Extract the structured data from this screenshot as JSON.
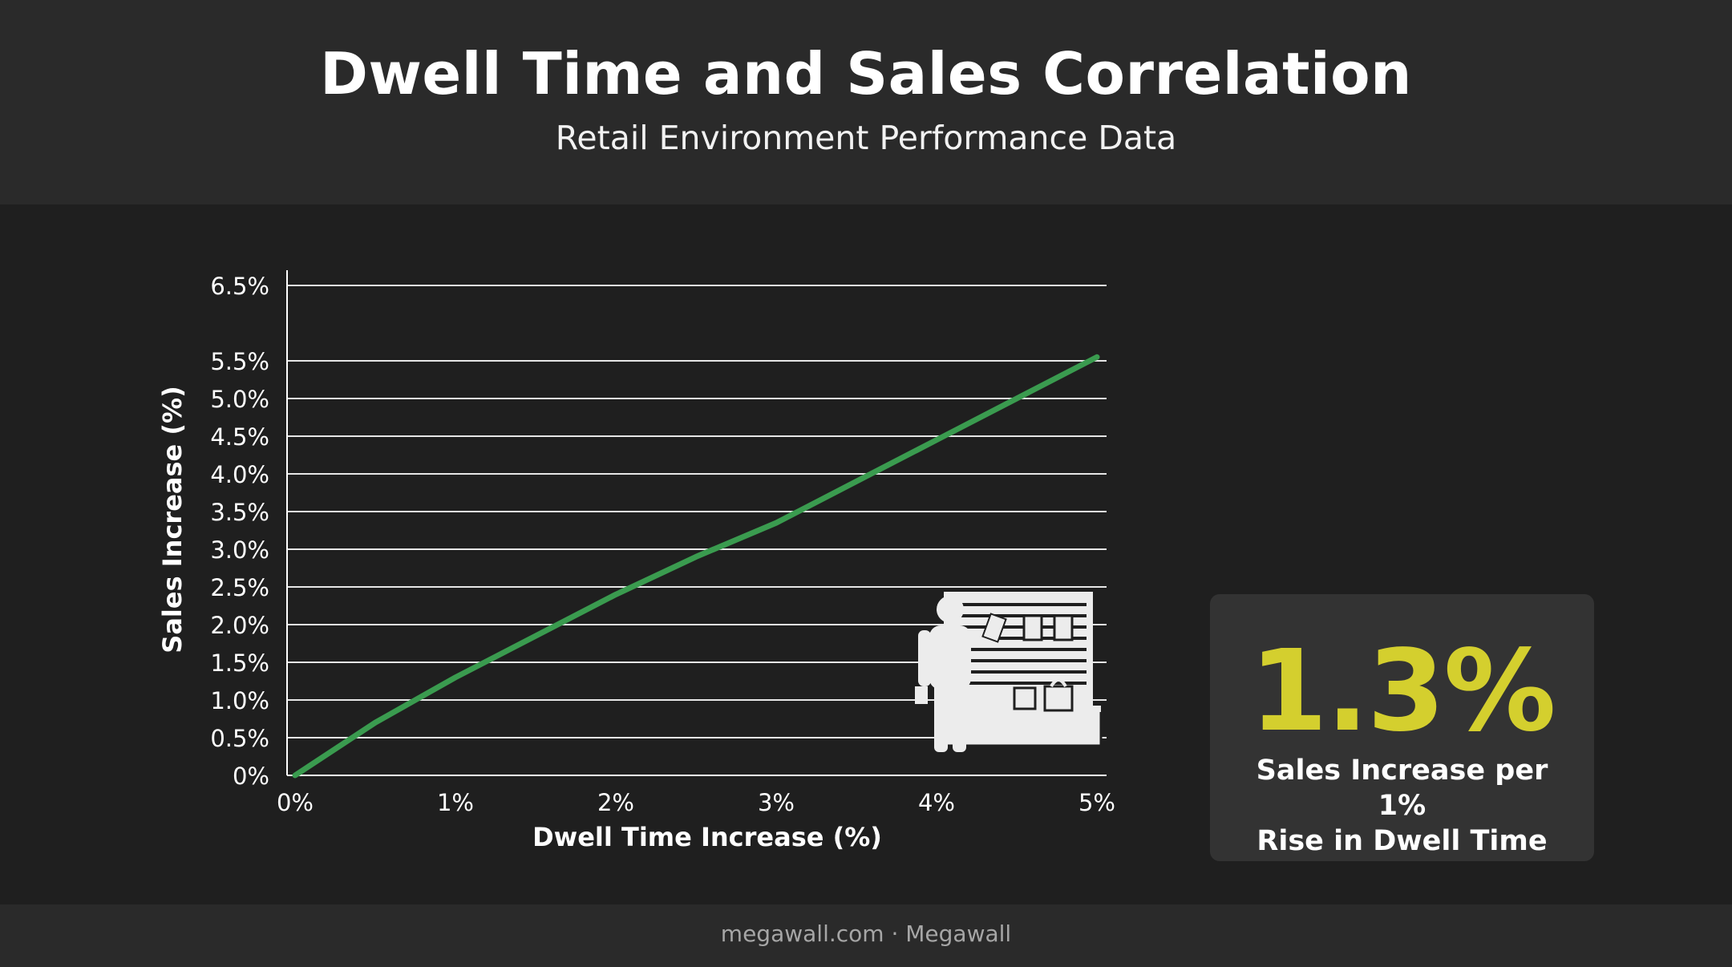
{
  "header": {
    "title": "Dwell Time and Sales Correlation",
    "subtitle": "Retail Environment Performance Data"
  },
  "stat_card": {
    "value": "1.3%",
    "label_line1": "Sales Increase per 1%",
    "label_line2": "Rise in Dwell Time",
    "value_color": "#d4cf2e"
  },
  "footer": {
    "text": "megawall.com · Megawall"
  },
  "illustration": {
    "icon": "shopper-at-shelf-icon"
  },
  "colors": {
    "line": "#3a9b4f",
    "background": "#1f1f1f",
    "panel": "#2a2a2a",
    "card": "#333333"
  },
  "chart_data": {
    "type": "line",
    "title": "",
    "xlabel": "Dwell Time Increase (%)",
    "ylabel": "Sales Increase (%)",
    "xlim": [
      0,
      5
    ],
    "ylim": [
      0,
      6.5
    ],
    "x_ticks": [
      "0%",
      "1%",
      "2%",
      "3%",
      "4%",
      "5%"
    ],
    "x_tick_values": [
      0,
      1,
      2,
      3,
      4,
      5
    ],
    "y_ticks": [
      "0%",
      "0.5%",
      "1.0%",
      "1.5%",
      "2.0%",
      "2.5%",
      "3.0%",
      "3.5%",
      "4.0%",
      "4.5%",
      "5.0%",
      "5.5%",
      "6.5%"
    ],
    "y_tick_values": [
      0,
      0.5,
      1.0,
      1.5,
      2.0,
      2.5,
      3.0,
      3.5,
      4.0,
      4.5,
      5.0,
      5.5,
      6.5
    ],
    "grid": true,
    "series": [
      {
        "x": [
          0,
          0.5,
          1,
          1.5,
          2,
          2.5,
          3,
          3.5,
          4,
          4.5,
          5
        ],
        "y": [
          0,
          0.7,
          1.3,
          1.85,
          2.4,
          2.9,
          3.35,
          3.9,
          4.45,
          5.0,
          5.55
        ]
      }
    ]
  }
}
